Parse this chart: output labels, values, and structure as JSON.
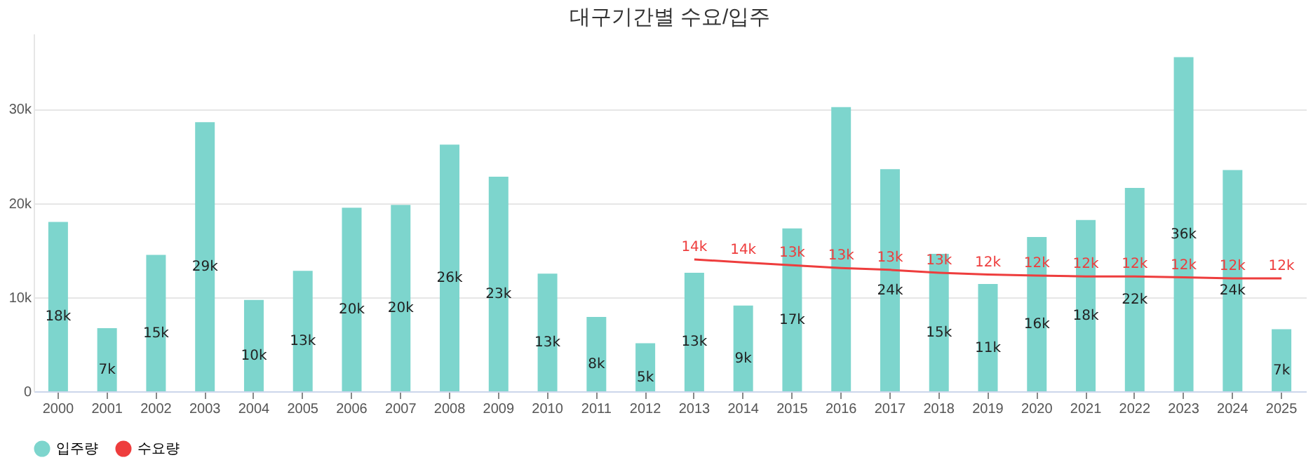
{
  "chart_data": {
    "type": "bar",
    "title": "대구기간별 수요/입주",
    "categories": [
      "2000",
      "2001",
      "2002",
      "2003",
      "2004",
      "2005",
      "2006",
      "2007",
      "2008",
      "2009",
      "2010",
      "2011",
      "2012",
      "2013",
      "2014",
      "2015",
      "2016",
      "2017",
      "2018",
      "2019",
      "2020",
      "2021",
      "2022",
      "2023",
      "2024",
      "2025"
    ],
    "series": [
      {
        "name": "입주량",
        "color": "#7dd5cd",
        "values": [
          18000,
          6700,
          14500,
          28600,
          9700,
          12800,
          19500,
          19800,
          26200,
          22800,
          12500,
          7900,
          5100,
          12600,
          9100,
          17300,
          30200,
          23600,
          14600,
          11400,
          16400,
          18200,
          21600,
          35500,
          23500,
          6600
        ],
        "value_labels": [
          "18k",
          "7k",
          "15k",
          "29k",
          "10k",
          "13k",
          "20k",
          "20k",
          "26k",
          "23k",
          "13k",
          "8k",
          "5k",
          "13k",
          "9k",
          "17k",
          null,
          "24k",
          "15k",
          "11k",
          "16k",
          "18k",
          "22k",
          "36k",
          "24k",
          "7k"
        ]
      },
      {
        "name": "수요량",
        "type": "line",
        "color": "#ee3d3d",
        "values": [
          null,
          null,
          null,
          null,
          null,
          null,
          null,
          null,
          null,
          null,
          null,
          null,
          null,
          14000,
          13700,
          13400,
          13100,
          12900,
          12600,
          12400,
          12300,
          12200,
          12200,
          12100,
          12000,
          12000
        ],
        "value_labels": [
          null,
          null,
          null,
          null,
          null,
          null,
          null,
          null,
          null,
          null,
          null,
          null,
          null,
          "14k",
          "14k",
          "13k",
          "13k",
          "13k",
          "13k",
          "12k",
          "12k",
          "12k",
          "12k",
          "12k",
          "12k",
          "12k"
        ]
      }
    ],
    "ylim": [
      0,
      38000
    ],
    "yticks": [
      0,
      {
        "value": 10000,
        "label": "10k"
      },
      {
        "value": 20000,
        "label": "20k"
      },
      {
        "value": 30000,
        "label": "30k"
      }
    ],
    "grid": "y",
    "legend": "bottom",
    "marker": "none",
    "line_style": "solid"
  }
}
